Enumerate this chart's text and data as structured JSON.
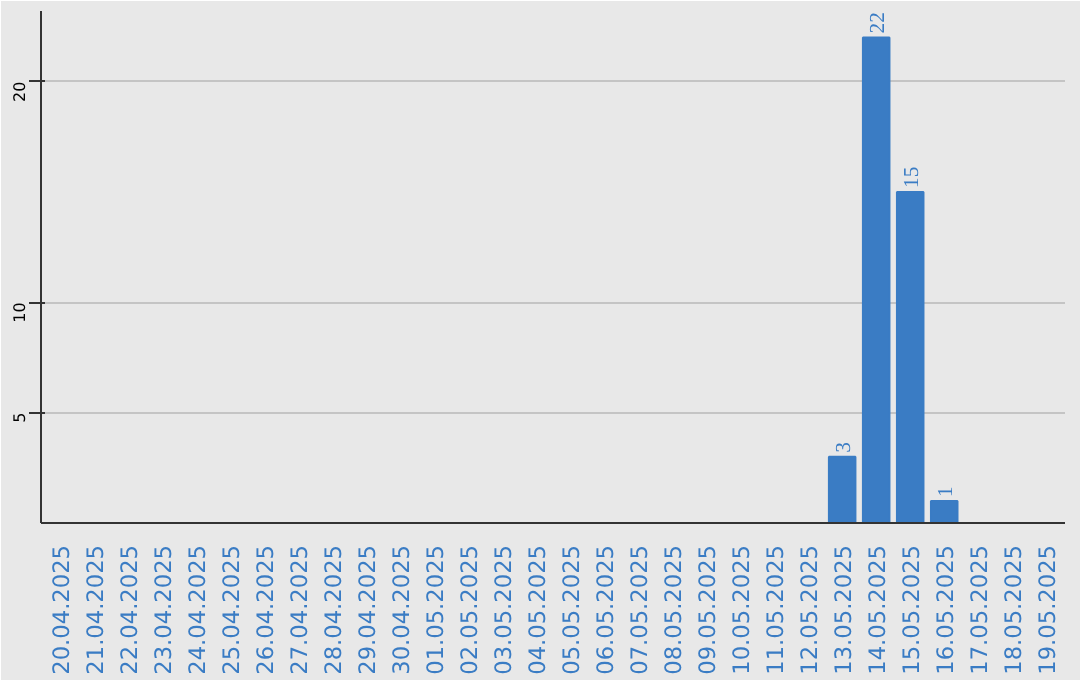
{
  "chart_data": {
    "type": "bar",
    "categories": [
      "20.04.2025",
      "21.04.2025",
      "22.04.2025",
      "23.04.2025",
      "24.04.2025",
      "25.04.2025",
      "26.04.2025",
      "27.04.2025",
      "28.04.2025",
      "29.04.2025",
      "30.04.2025",
      "01.05.2025",
      "02.05.2025",
      "03.05.2025",
      "04.05.2025",
      "05.05.2025",
      "06.05.2025",
      "07.05.2025",
      "08.05.2025",
      "09.05.2025",
      "10.05.2025",
      "11.05.2025",
      "12.05.2025",
      "13.05.2025",
      "14.05.2025",
      "15.05.2025",
      "16.05.2025",
      "17.05.2025",
      "18.05.2025",
      "19.05.2025"
    ],
    "values": [
      0,
      0,
      0,
      0,
      0,
      0,
      0,
      0,
      0,
      0,
      0,
      0,
      0,
      0,
      0,
      0,
      0,
      0,
      0,
      0,
      0,
      0,
      0,
      3,
      22,
      15,
      1,
      0,
      0,
      0
    ],
    "value_labels": [
      null,
      null,
      null,
      null,
      null,
      null,
      null,
      null,
      null,
      null,
      null,
      null,
      null,
      null,
      null,
      null,
      null,
      null,
      null,
      null,
      null,
      null,
      null,
      "3",
      "22",
      "15",
      "1",
      null,
      null,
      null
    ],
    "color": "#3a7cc4",
    "ylim": [
      0,
      23.2
    ],
    "yticks": [
      5,
      10,
      20
    ],
    "grid": "y"
  }
}
